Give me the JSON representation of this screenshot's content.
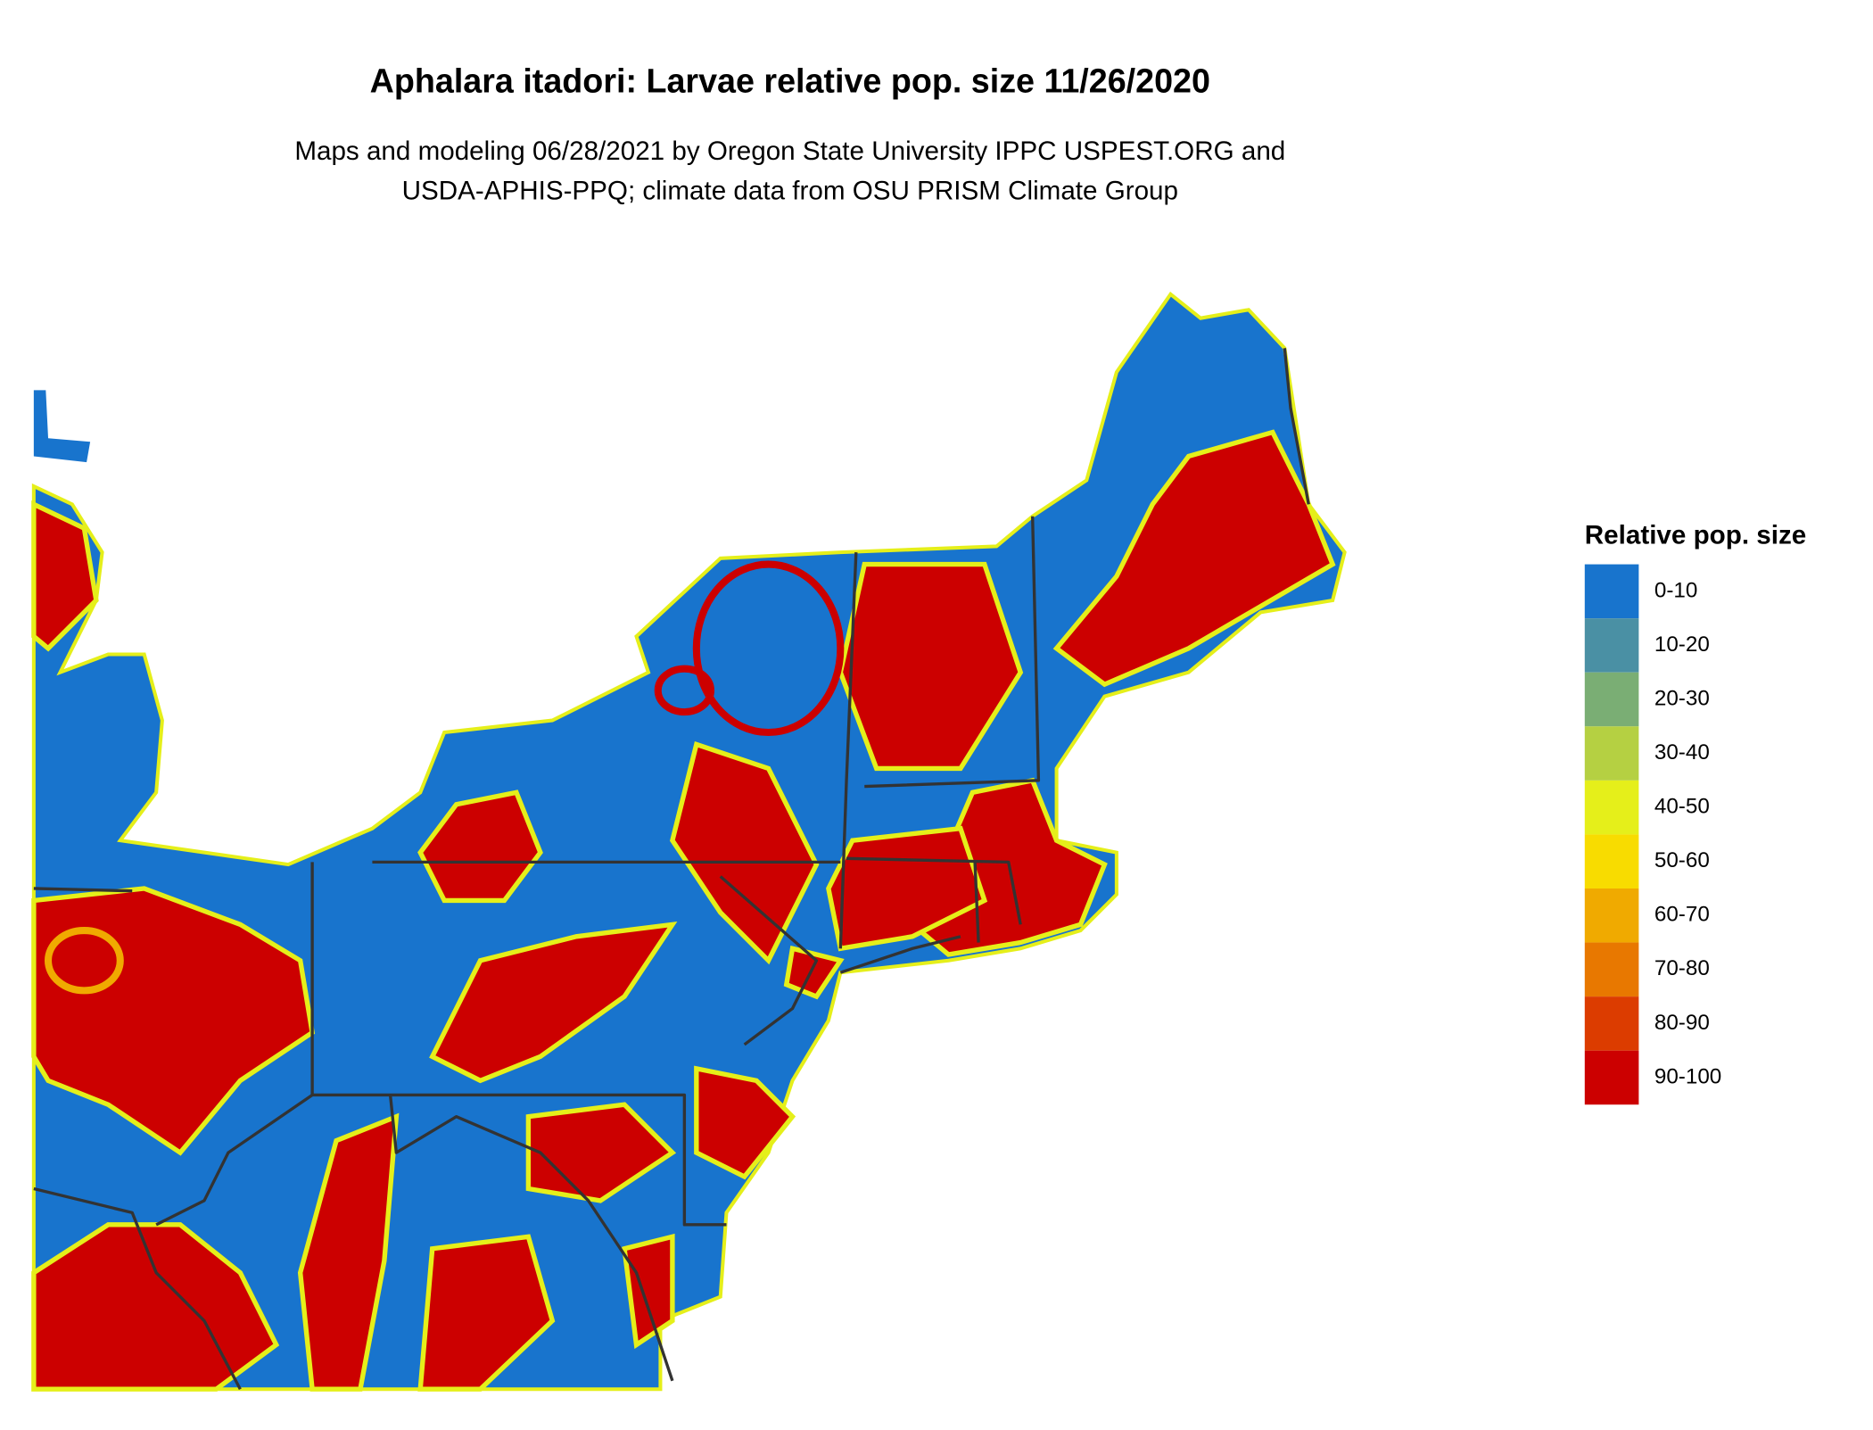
{
  "header": {
    "title": "Aphalara itadori: Larvae relative pop. size 11/26/2020",
    "subtitle_lines": [
      "Maps and modeling 06/28/2021 by Oregon State University IPPC USPEST.ORG and",
      "USDA-APHIS-PPQ; climate data from OSU PRISM Climate Group"
    ]
  },
  "legend": {
    "title": "Relative pop. size",
    "items": [
      {
        "label": "0-10",
        "color": "#1874cd"
      },
      {
        "label": "10-20",
        "color": "#4a90a4"
      },
      {
        "label": "20-30",
        "color": "#7aae74"
      },
      {
        "label": "30-40",
        "color": "#b5d042"
      },
      {
        "label": "40-50",
        "color": "#e5ef1a"
      },
      {
        "label": "50-60",
        "color": "#f8dc00"
      },
      {
        "label": "60-70",
        "color": "#f0aa00"
      },
      {
        "label": "70-80",
        "color": "#e87800"
      },
      {
        "label": "80-90",
        "color": "#dc3c00"
      },
      {
        "label": "90-100",
        "color": "#cc0000"
      }
    ]
  }
}
